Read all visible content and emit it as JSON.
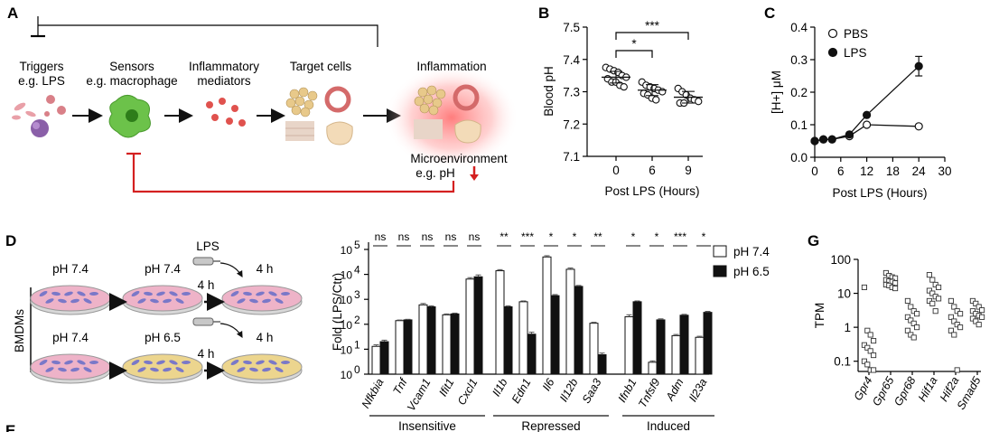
{
  "panel_labels": {
    "a": "A",
    "b": "B",
    "c": "C",
    "d": "D",
    "e": "E",
    "g": "G"
  },
  "panel_a": {
    "triggers": "Triggers",
    "triggers_eg": "e.g. LPS",
    "sensors": "Sensors",
    "sensors_eg": "e.g. macrophage",
    "mediators_1": "Inflammatory",
    "mediators_2": "mediators",
    "target": "Target cells",
    "inflammation": "Inflammation",
    "microenv": "Microenvironment",
    "microenv_eg": "e.g. pH",
    "colors": {
      "inhibition": "#d42020",
      "macrophage": "#6cc24a",
      "mediator": "#e0524e"
    }
  },
  "panel_d_diagram": {
    "lps": "LPS",
    "row1_ph_left": "pH 7.4",
    "row1_ph_right": "pH 7.4",
    "row2_ph_left": "pH 7.4",
    "row2_ph_right": "pH 6.5",
    "time_1": "4 h",
    "time_2": "4 h",
    "time_3": "4 h",
    "time_4": "4 h",
    "side_label": "BMDMs",
    "colors": {
      "dish_pink": "#eeb3c8",
      "dish_yellow": "#ecd58e"
    }
  },
  "chart_data": [
    {
      "id": "B",
      "type": "scatter",
      "ylabel": "Blood pH",
      "xlabel": "Post LPS (Hours)",
      "categories": [
        "0",
        "6",
        "9"
      ],
      "ylim": [
        7.1,
        7.5
      ],
      "yticks": [
        "7.1",
        "7.2",
        "7.3",
        "7.4",
        "7.5"
      ],
      "points": [
        [
          7.375,
          7.37,
          7.365,
          7.36,
          7.35,
          7.345,
          7.34,
          7.33,
          7.33,
          7.32,
          7.315
        ],
        [
          7.33,
          7.32,
          7.315,
          7.31,
          7.305,
          7.3,
          7.295,
          7.29,
          7.28,
          7.275
        ],
        [
          7.31,
          7.3,
          7.29,
          7.28,
          7.275,
          7.27,
          7.265,
          7.265
        ]
      ],
      "means": [
        7.345,
        7.305,
        7.283
      ],
      "sd": [
        0.018,
        0.017,
        0.018
      ],
      "significance": [
        {
          "from": 0,
          "to": 1,
          "label": "*"
        },
        {
          "from": 0,
          "to": 2,
          "label": "***"
        }
      ]
    },
    {
      "id": "C",
      "type": "line",
      "ylabel": "[H+] μM",
      "xlabel": "Post LPS (Hours)",
      "xlim": [
        0,
        30
      ],
      "ylim": [
        0,
        0.4
      ],
      "xticks": [
        "0",
        "6",
        "12",
        "18",
        "24",
        "30"
      ],
      "yticks": [
        "0.0",
        "0.1",
        "0.2",
        "0.3",
        "0.4"
      ],
      "series": [
        {
          "name": "PBS",
          "x": [
            0,
            2,
            4,
            8,
            12,
            24
          ],
          "y": [
            0.05,
            0.055,
            0.055,
            0.065,
            0.1,
            0.095
          ]
        },
        {
          "name": "LPS",
          "x": [
            0,
            2,
            4,
            8,
            12,
            24
          ],
          "y": [
            0.05,
            0.055,
            0.055,
            0.07,
            0.13,
            0.28
          ],
          "err": [
            0,
            0,
            0,
            0,
            0,
            0.03
          ]
        }
      ]
    },
    {
      "id": "D",
      "type": "bar",
      "ylabel": "Fold (LPS/Ctr)",
      "yscale": "log",
      "ylim": [
        1,
        100000
      ],
      "ytick_base": "10",
      "ytick_exps": [
        "0",
        "1",
        "2",
        "3",
        "4",
        "5"
      ],
      "series": [
        {
          "name": "pH 7.4",
          "values": [
            13,
            140,
            600,
            240,
            6500,
            14000,
            800,
            50000,
            16000,
            110,
            200,
            3,
            35,
            30
          ]
        },
        {
          "name": "pH 6.5",
          "values": [
            20,
            150,
            500,
            260,
            8000,
            500,
            40,
            1400,
            3300,
            6,
            800,
            150,
            230,
            300
          ]
        }
      ],
      "error": [
        [
          2,
          8,
          80,
          20,
          900,
          1500,
          60,
          6000,
          2000,
          10,
          40,
          0.4,
          4,
          3
        ],
        [
          3,
          8,
          50,
          20,
          1500,
          50,
          8,
          150,
          300,
          1,
          60,
          15,
          20,
          30
        ]
      ],
      "genes": [
        {
          "label": "Nfkbia",
          "sig": "ns"
        },
        {
          "label": "Tnf",
          "sig": "ns"
        },
        {
          "label": "Vcam1",
          "sig": "ns"
        },
        {
          "label": "Ifit1",
          "sig": "ns"
        },
        {
          "label": "Cxcl1",
          "sig": "ns"
        },
        {
          "label": "Il1b",
          "sig": "**"
        },
        {
          "label": "Edn1",
          "sig": "***"
        },
        {
          "label": "Il6",
          "sig": "*"
        },
        {
          "label": "Il12b",
          "sig": "*"
        },
        {
          "label": "Saa3",
          "sig": "**"
        },
        {
          "label": "Ifnb1",
          "sig": "*"
        },
        {
          "label": "Tnfsf9",
          "sig": "*"
        },
        {
          "label": "Adm",
          "sig": "***"
        },
        {
          "label": "Il23a",
          "sig": "*"
        }
      ],
      "groups": [
        "Insensitive",
        "Repressed",
        "Induced"
      ]
    },
    {
      "id": "G",
      "type": "scatter",
      "yscale": "log",
      "ylabel": "TPM",
      "ylim": [
        0.05,
        100
      ],
      "yticks": [
        "0.1",
        "1",
        "10",
        "100"
      ],
      "categories": [
        "Gpr4",
        "Gpr65",
        "Gpr68",
        "Hif1a",
        "Hif2a",
        "Smad5"
      ],
      "points": [
        [
          15,
          0.8,
          0.6,
          0.4,
          0.3,
          0.25,
          0.2,
          0.15,
          0.1,
          0.08,
          0.055,
          0.055
        ],
        [
          40,
          33,
          30,
          28,
          25,
          23,
          22,
          20,
          18,
          17,
          15,
          14
        ],
        [
          6,
          4,
          3,
          2.5,
          2,
          1.6,
          1.3,
          1,
          0.8,
          0.6,
          0.5
        ],
        [
          35,
          25,
          18,
          15,
          12,
          10,
          8,
          7,
          6,
          5,
          3
        ],
        [
          6,
          4,
          3,
          2.5,
          2,
          1.5,
          1.2,
          1,
          0.8,
          0.6,
          0.055
        ],
        [
          6,
          5,
          4,
          3.2,
          3,
          2.5,
          2.2,
          2,
          1.8,
          1.5,
          1.2
        ]
      ]
    }
  ]
}
